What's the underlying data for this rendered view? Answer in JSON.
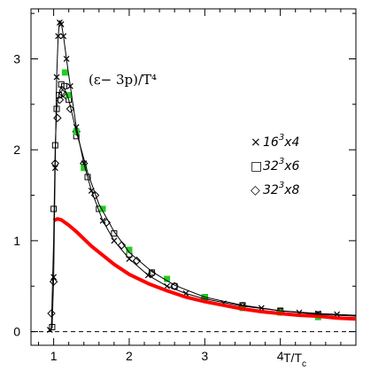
{
  "chart_data": {
    "type": "line",
    "title": "",
    "annotation": "(ε− 3p)/T⁴",
    "xlabel": "T/T",
    "xlabel_sub": "c",
    "ylabel": "",
    "xlim": [
      0.7,
      5.0
    ],
    "ylim": [
      -0.15,
      3.55
    ],
    "x_ticks": [
      1,
      2,
      3,
      4
    ],
    "x_tick_labels": [
      "1",
      "2",
      "3",
      "4"
    ],
    "y_ticks": [
      0,
      1,
      2,
      3
    ],
    "y_tick_labels": [
      "0",
      "1",
      "2",
      "3"
    ],
    "grid": false,
    "legend_position": "right",
    "zero_line": {
      "y": 0,
      "style": "dashed"
    },
    "legend": [
      {
        "symbol": "×",
        "label_base": "16",
        "label_sup": "3",
        "label_rest": "x4"
      },
      {
        "symbol": "□",
        "label_base": "32",
        "label_sup": "3",
        "label_rest": "x6"
      },
      {
        "symbol": "◇",
        "label_base": "32",
        "label_sup": "3",
        "label_rest": "x8"
      }
    ],
    "series": [
      {
        "marker": "cross",
        "color": "#000000",
        "x": [
          0.95,
          1.0,
          1.02,
          1.04,
          1.06,
          1.08,
          1.1,
          1.13,
          1.17,
          1.22,
          1.3,
          1.4,
          1.5,
          1.65,
          1.8,
          2.0,
          2.25,
          2.5,
          2.75,
          3.0,
          3.25,
          3.5,
          3.75,
          4.0,
          4.25,
          4.5,
          4.75
        ],
        "y": [
          0.02,
          0.6,
          1.8,
          2.8,
          3.25,
          3.4,
          3.38,
          3.25,
          3.0,
          2.7,
          2.25,
          1.85,
          1.55,
          1.22,
          1.0,
          0.8,
          0.62,
          0.5,
          0.42,
          0.36,
          0.31,
          0.28,
          0.26,
          0.23,
          0.21,
          0.2,
          0.19
        ]
      },
      {
        "marker": "square",
        "color": "#000000",
        "x": [
          0.98,
          1.0,
          1.02,
          1.04,
          1.07,
          1.1,
          1.14,
          1.2,
          1.3,
          1.45,
          1.6,
          1.8,
          2.0,
          2.3,
          2.6,
          3.0,
          3.5,
          4.0,
          4.5
        ],
        "y": [
          0.05,
          1.35,
          2.05,
          2.45,
          2.6,
          2.72,
          2.7,
          2.55,
          2.15,
          1.7,
          1.35,
          1.08,
          0.85,
          0.65,
          0.5,
          0.38,
          0.29,
          0.23,
          0.19
        ]
      },
      {
        "marker": "diamond",
        "color": "#000000",
        "x": [
          0.97,
          1.0,
          1.02,
          1.05,
          1.08,
          1.12,
          1.16,
          1.22,
          1.3,
          1.4,
          1.55,
          1.7,
          1.9,
          2.1,
          2.3,
          2.6,
          3.0,
          3.5,
          4.0,
          4.5
        ],
        "y": [
          0.2,
          0.55,
          1.85,
          2.35,
          2.55,
          2.62,
          2.6,
          2.45,
          2.2,
          1.85,
          1.5,
          1.2,
          0.95,
          0.78,
          0.64,
          0.5,
          0.37,
          0.28,
          0.22,
          0.18
        ]
      },
      {
        "marker": "green-square",
        "color": "#22cc22",
        "x": [
          1.15,
          1.2,
          1.3,
          1.4,
          1.65,
          2.0,
          2.5,
          3.0,
          3.5,
          4.0,
          4.5
        ],
        "y": [
          2.85,
          2.6,
          2.2,
          1.8,
          1.35,
          0.9,
          0.58,
          0.38,
          0.26,
          0.21,
          0.16
        ]
      },
      {
        "marker": "line",
        "color": "#ff0000",
        "x": [
          1.0,
          1.05,
          1.1,
          1.2,
          1.3,
          1.4,
          1.5,
          1.65,
          1.8,
          2.0,
          2.25,
          2.5,
          2.75,
          3.0,
          3.25,
          3.5,
          3.75,
          4.0,
          4.25,
          4.5,
          4.75,
          5.0
        ],
        "y": [
          1.22,
          1.24,
          1.23,
          1.17,
          1.1,
          1.02,
          0.94,
          0.84,
          0.74,
          0.63,
          0.53,
          0.45,
          0.38,
          0.33,
          0.29,
          0.25,
          0.22,
          0.2,
          0.18,
          0.17,
          0.15,
          0.14
        ]
      },
      {
        "marker": "line",
        "color": "#000000",
        "x": [
          0.95,
          0.98,
          1.0,
          1.02,
          1.04,
          1.06,
          1.08,
          1.1,
          1.13,
          1.17,
          1.22,
          1.3,
          1.4,
          1.5,
          1.65,
          1.8,
          2.0,
          2.25,
          2.5,
          2.75,
          3.0,
          3.5,
          4.0,
          4.5,
          5.0
        ],
        "y": [
          0.0,
          0.05,
          0.6,
          1.8,
          2.8,
          3.25,
          3.42,
          3.4,
          3.25,
          3.0,
          2.7,
          2.25,
          1.85,
          1.55,
          1.22,
          1.0,
          0.8,
          0.62,
          0.5,
          0.42,
          0.36,
          0.28,
          0.23,
          0.2,
          0.18
        ]
      },
      {
        "marker": "line",
        "color": "#000000",
        "x": [
          0.97,
          1.0,
          1.02,
          1.04,
          1.07,
          1.1,
          1.14,
          1.2,
          1.3,
          1.45,
          1.6,
          1.8,
          2.0,
          2.3,
          2.6,
          3.0,
          3.5,
          4.0,
          4.5,
          5.0
        ],
        "y": [
          0.02,
          1.0,
          2.0,
          2.45,
          2.62,
          2.7,
          2.68,
          2.55,
          2.2,
          1.75,
          1.4,
          1.1,
          0.87,
          0.66,
          0.51,
          0.38,
          0.29,
          0.23,
          0.19,
          0.17
        ]
      }
    ]
  }
}
